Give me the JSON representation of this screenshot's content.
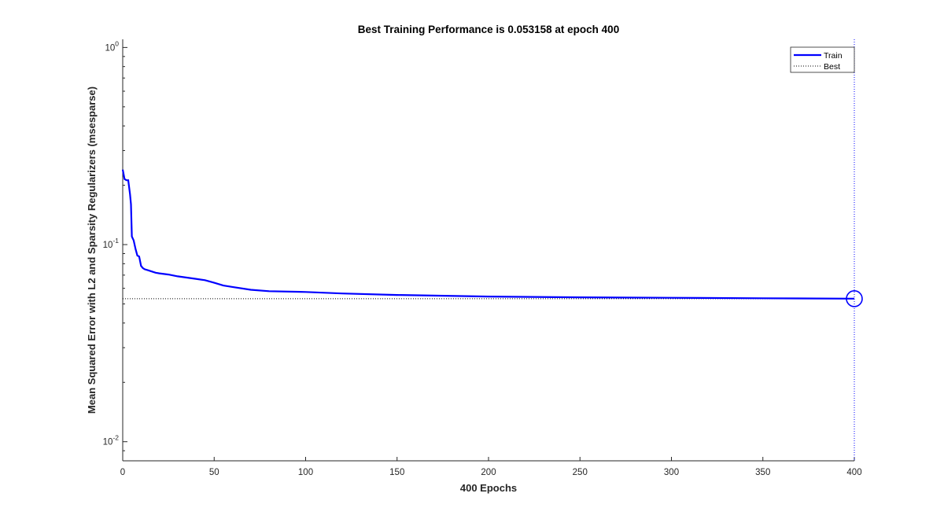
{
  "chart_data": {
    "type": "line",
    "title": "Best Training Performance is 0.053158 at epoch 400",
    "xlabel": "400 Epochs",
    "ylabel": "Mean Squared Error with L2 and Sparsity Regularizers  (msesparse)",
    "xlim": [
      0,
      400
    ],
    "ylim": [
      0.008,
      1.1
    ],
    "yscale": "log",
    "x_ticks": [
      "0",
      "50",
      "100",
      "150",
      "200",
      "250",
      "300",
      "350",
      "400"
    ],
    "y_ticks": [
      {
        "value": 0.01,
        "base": "10",
        "exp": "-2"
      },
      {
        "value": 0.1,
        "base": "10",
        "exp": "-1"
      },
      {
        "value": 1,
        "base": "10",
        "exp": "0"
      }
    ],
    "grid": false,
    "legend_position": "top-right",
    "best": {
      "epoch": 400,
      "value": 0.053158
    },
    "series": [
      {
        "name": "Train",
        "color": "#0000ff",
        "x": [
          0,
          1,
          2,
          3,
          4,
          4.5,
          5,
          6,
          7,
          8,
          9,
          10,
          11,
          12,
          14,
          16,
          18,
          20,
          25,
          30,
          35,
          40,
          45,
          50,
          55,
          60,
          70,
          80,
          100,
          120,
          150,
          200,
          250,
          300,
          350,
          400
        ],
        "y": [
          0.24,
          0.215,
          0.212,
          0.212,
          0.18,
          0.16,
          0.11,
          0.105,
          0.095,
          0.088,
          0.087,
          0.078,
          0.076,
          0.075,
          0.074,
          0.073,
          0.072,
          0.0715,
          0.0705,
          0.069,
          0.068,
          0.067,
          0.066,
          0.064,
          0.062,
          0.061,
          0.059,
          0.058,
          0.0575,
          0.0565,
          0.0555,
          0.0545,
          0.054,
          0.0537,
          0.0534,
          0.053158
        ]
      },
      {
        "name": "Best",
        "style": "dotted",
        "color": "#000000",
        "value": 0.053158
      }
    ]
  },
  "legend": {
    "train_label": "Train",
    "best_label": "Best"
  }
}
